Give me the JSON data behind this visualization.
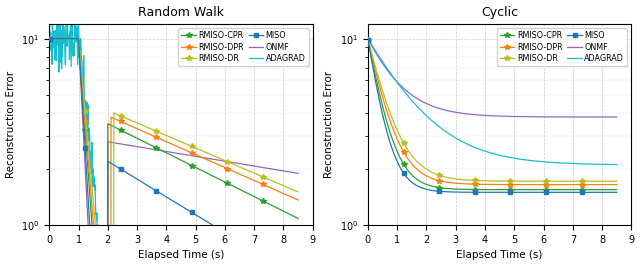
{
  "title_left": "Random Walk",
  "title_right": "Cyclic",
  "xlabel": "Elapsed Time (s)",
  "ylabel": "Reconstruction Error",
  "xlim": [
    0,
    9
  ],
  "colors": {
    "RMISO-CPR": "#2ca02c",
    "RMISO-DPR": "#ff7f0e",
    "RMISO-DR": "#bcbd22",
    "MISO": "#1f77b4",
    "ONMF": "#9467bd",
    "ADAGRAD": "#17becf"
  },
  "background": "#ffffff",
  "grid_color": "#cccccc"
}
